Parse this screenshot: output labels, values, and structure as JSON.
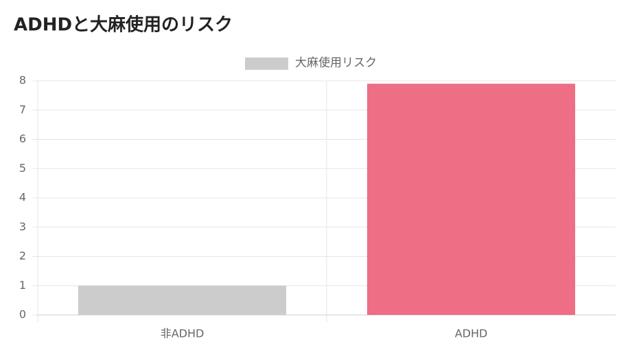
{
  "chart_data": {
    "type": "bar",
    "title": "ADHDと大麻使用のリスク",
    "categories": [
      "非ADHD",
      "ADHD"
    ],
    "series": [
      {
        "name": "大麻使用リスク",
        "color": "#cccccc",
        "bar_colors": [
          "#cccccc",
          "#ed6e85"
        ],
        "values": [
          1,
          7.9
        ]
      }
    ],
    "ylim": [
      0,
      8
    ],
    "yticks": [
      0,
      1,
      2,
      3,
      4,
      5,
      6,
      7,
      8
    ],
    "grid": true,
    "legend": "top"
  }
}
